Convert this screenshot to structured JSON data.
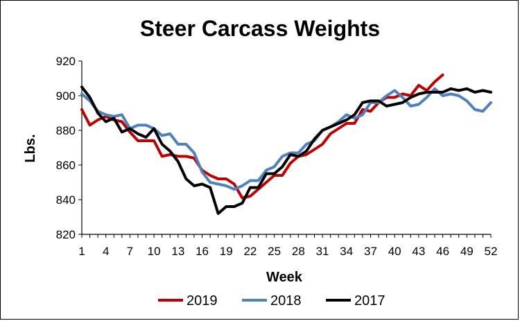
{
  "chart_data": {
    "type": "line",
    "title": "Steer Carcass Weights",
    "xlabel": "Week",
    "ylabel": "Lbs.",
    "xlim": [
      1,
      52
    ],
    "ylim": [
      820,
      920
    ],
    "yticks": [
      820,
      840,
      860,
      880,
      900,
      920
    ],
    "xticks": [
      1,
      4,
      7,
      10,
      13,
      16,
      19,
      22,
      25,
      28,
      31,
      34,
      37,
      40,
      43,
      46,
      49,
      52
    ],
    "grid": false,
    "legend_position": "bottom",
    "series": [
      {
        "name": "2019",
        "color": "#c00000",
        "x": [
          1,
          2,
          3,
          4,
          5,
          6,
          7,
          8,
          9,
          10,
          11,
          12,
          13,
          14,
          15,
          16,
          17,
          18,
          19,
          20,
          21,
          22,
          23,
          24,
          25,
          26,
          27,
          28,
          29,
          30,
          31,
          32,
          33,
          34,
          35,
          36,
          37,
          38,
          39,
          40,
          41,
          42,
          43,
          44,
          45,
          46
        ],
        "values": [
          892,
          883,
          886,
          888,
          886,
          885,
          879,
          874,
          874,
          874,
          865,
          866,
          865,
          865,
          864,
          857,
          854,
          852,
          852,
          849,
          841,
          842,
          846,
          850,
          854,
          854,
          861,
          865,
          866,
          869,
          872,
          878,
          881,
          884,
          884,
          892,
          891,
          896,
          899,
          899,
          901,
          900,
          906,
          903,
          908,
          912
        ]
      },
      {
        "name": "2018",
        "color": "#4f81bd",
        "x": [
          1,
          2,
          3,
          4,
          5,
          6,
          7,
          8,
          9,
          10,
          11,
          12,
          13,
          14,
          15,
          16,
          17,
          18,
          19,
          20,
          21,
          22,
          23,
          24,
          25,
          26,
          27,
          28,
          29,
          30,
          31,
          32,
          33,
          34,
          35,
          36,
          37,
          38,
          39,
          40,
          41,
          42,
          43,
          44,
          45,
          46,
          47,
          48,
          49,
          50,
          51,
          52
        ],
        "values": [
          901,
          897,
          891,
          889,
          888,
          889,
          881,
          883,
          883,
          881,
          877,
          878,
          872,
          872,
          867,
          856,
          850,
          849,
          848,
          846,
          848,
          851,
          851,
          857,
          859,
          865,
          867,
          867,
          872,
          874,
          880,
          882,
          885,
          889,
          887,
          889,
          896,
          896,
          900,
          903,
          899,
          894,
          895,
          899,
          904,
          900,
          901,
          900,
          897,
          892,
          891,
          896
        ]
      },
      {
        "name": "2017",
        "color": "#000000",
        "x": [
          1,
          2,
          3,
          4,
          5,
          6,
          7,
          8,
          9,
          10,
          11,
          12,
          13,
          14,
          15,
          16,
          17,
          18,
          19,
          20,
          21,
          22,
          23,
          24,
          25,
          26,
          27,
          28,
          29,
          30,
          31,
          32,
          33,
          34,
          35,
          36,
          37,
          38,
          39,
          40,
          41,
          42,
          43,
          44,
          45,
          46,
          47,
          48,
          49,
          50,
          51,
          52
        ],
        "values": [
          905,
          899,
          890,
          885,
          887,
          879,
          881,
          878,
          876,
          881,
          872,
          868,
          862,
          852,
          848,
          849,
          847,
          832,
          836,
          836,
          838,
          847,
          847,
          855,
          855,
          859,
          866,
          865,
          868,
          875,
          880,
          882,
          884,
          886,
          889,
          896,
          897,
          897,
          894,
          895,
          896,
          899,
          901,
          902,
          902,
          902,
          904,
          903,
          904,
          902,
          903,
          902
        ]
      }
    ]
  }
}
